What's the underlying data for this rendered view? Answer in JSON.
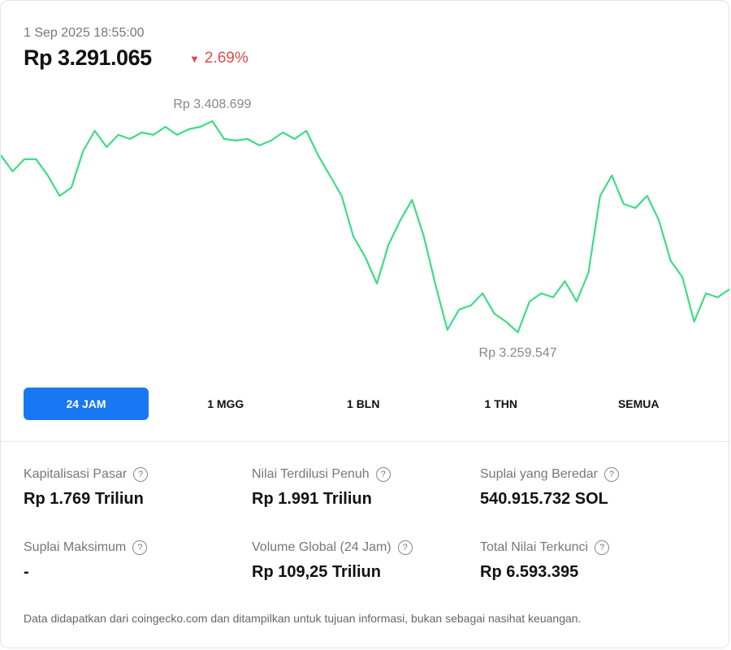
{
  "header": {
    "date": "1 Sep 2025 18:55:00",
    "price": "Rp 3.291.065",
    "change": "2.69%"
  },
  "chart_data": {
    "type": "line",
    "color": "#3ddc84",
    "high": {
      "value": 3408699,
      "label": "Rp 3.408.699"
    },
    "low": {
      "value": 3259547,
      "label": "Rp 3.259.547"
    },
    "values": [
      3384605,
      3373132,
      3381737,
      3381737,
      3370263,
      3355922,
      3361658,
      3387473,
      3401815,
      3390341,
      3398946,
      3396078,
      3400667,
      3398946,
      3404683,
      3398946,
      3402962,
      3404683,
      3408699,
      3396078,
      3394931,
      3396078,
      3391489,
      3394931,
      3400667,
      3396078,
      3401815,
      3384605,
      3370263,
      3355922,
      3327239,
      3312897,
      3293967,
      3321502,
      3338712,
      3353054,
      3327239,
      3292819,
      3261268,
      3275609,
      3278478,
      3287083,
      3272741,
      3267005,
      3259547,
      3281346,
      3287083,
      3284214,
      3295688,
      3281346,
      3301424,
      3355922,
      3370263,
      3350185,
      3347317,
      3355922,
      3338712,
      3310029,
      3298556,
      3267005,
      3287083,
      3284214,
      3289951
    ]
  },
  "tabs": [
    "24 JAM",
    "1 MGG",
    "1 BLN",
    "1 THN",
    "SEMUA"
  ],
  "stats": [
    {
      "label": "Kapitalisasi Pasar",
      "value": "Rp 1.769 Triliun"
    },
    {
      "label": "Nilai Terdilusi Penuh",
      "value": "Rp 1.991 Triliun"
    },
    {
      "label": "Suplai yang Beredar",
      "value": "540.915.732 SOL"
    },
    {
      "label": "Suplai Maksimum",
      "value": "-"
    },
    {
      "label": "Volume Global (24 Jam)",
      "value": "Rp 109,25 Triliun"
    },
    {
      "label": "Total Nilai Terkunci",
      "value": "Rp 6.593.395"
    }
  ],
  "footer": "Data didapatkan dari coingecko.com dan ditampilkan untuk tujuan informasi, bukan sebagai nasihat keuangan."
}
